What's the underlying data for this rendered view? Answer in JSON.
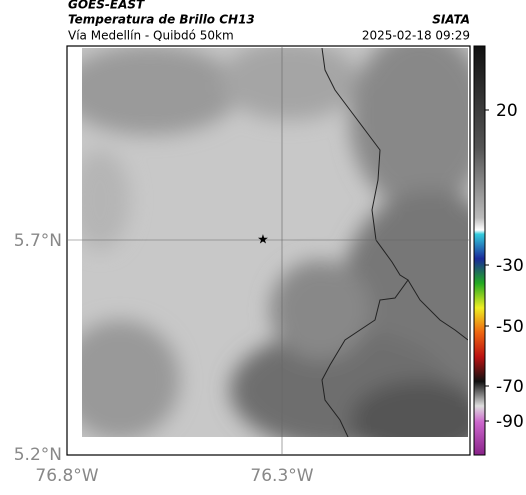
{
  "header": {
    "title": "GOES-EAST",
    "subtitle": "Temperatura de Brillo CH13",
    "location": "Vía Medellín - Quibdó 50km",
    "source": "SIATA",
    "datetime": "2025-02-18 09:29"
  },
  "map": {
    "y_labels": [
      "5.7°N",
      "5.2°N"
    ],
    "x_labels": [
      "76.8°W",
      "76.3°W"
    ]
  },
  "colorbar": {
    "labels": [
      "20",
      "-30",
      "-50",
      "-70",
      "-90"
    ]
  }
}
